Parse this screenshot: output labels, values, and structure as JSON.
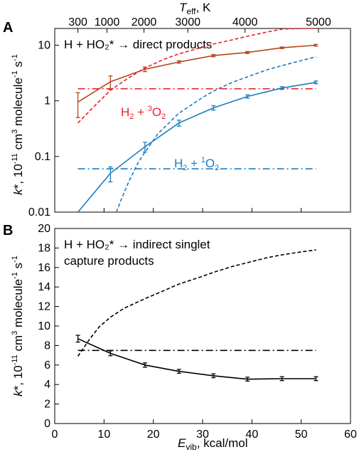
{
  "chart_data": [
    {
      "panel": "A",
      "type": "line",
      "yscale": "log",
      "ylim": [
        0.01,
        20
      ],
      "xlim": [
        0,
        60
      ],
      "yticks": [
        0.01,
        0.1,
        1,
        10
      ],
      "ytick_labels": [
        "0.01",
        "0.1",
        "1",
        "10"
      ],
      "annotation": "H + HO₂* → direct products",
      "top_axis": {
        "label": "T",
        "label_sub": "eff",
        "label_unit": ", K",
        "ticks": [
          300,
          1000,
          2000,
          3000,
          4000,
          5000
        ],
        "tick_labels": [
          "300",
          "1000",
          "2000",
          "3000",
          "4000",
          "5000"
        ],
        "tick_positions_evib": [
          4.7,
          10.6,
          18.1,
          27.0,
          38.6,
          53.5
        ]
      },
      "series": [
        {
          "name": "H₂ + ³O₂",
          "label_parts": [
            "H",
            "2",
            " + ",
            "3",
            "O",
            "2"
          ],
          "color": "#e8202a",
          "style": "dashdot",
          "x": [
            4.7,
            53
          ],
          "y": [
            1.65,
            1.65
          ]
        },
        {
          "name": "",
          "color": "#b5471d",
          "style": "solid-markers",
          "x": [
            4.7,
            11.3,
            18.3,
            25.2,
            32.2,
            39.1,
            46.1,
            53
          ],
          "y": [
            0.95,
            2.2,
            3.7,
            5.0,
            6.5,
            7.4,
            9.0,
            10.0
          ],
          "err": [
            0.45,
            0.6,
            0.35,
            0.25,
            0.3,
            0.3,
            0.3,
            0.35
          ]
        },
        {
          "name": "",
          "color": "#e8202a",
          "style": "dashed",
          "x": [
            4.7,
            8,
            11.3,
            15,
            18.3,
            22,
            25.2,
            30,
            32.2,
            36,
            39.1,
            43,
            46.1,
            50,
            53
          ],
          "y": [
            0.4,
            0.8,
            1.55,
            2.6,
            3.9,
            5.5,
            7.0,
            9.2,
            10.5,
            12.5,
            14.5,
            17.2,
            19.5,
            22.0,
            24.0
          ]
        },
        {
          "name": "H₂ + ¹O₂",
          "label_parts": [
            "H",
            "2",
            " + ",
            "1",
            "O",
            "2"
          ],
          "color": "#1a7ec0",
          "style": "dashdot",
          "x": [
            4.7,
            53
          ],
          "y": [
            0.06,
            0.06
          ]
        },
        {
          "name": "",
          "color": "#1a7ec0",
          "style": "solid-markers",
          "x": [
            4.7,
            11.3,
            18.3,
            25.2,
            32.2,
            39.1,
            46.1,
            53
          ],
          "y": [
            0.0065,
            0.05,
            0.15,
            0.4,
            0.75,
            1.2,
            1.7,
            2.15
          ],
          "err": [
            0.0,
            0.015,
            0.03,
            0.05,
            0.07,
            0.08,
            0.1,
            0.12
          ]
        },
        {
          "name": "",
          "color": "#1a7ec0",
          "style": "dashed",
          "x": [
            12.5,
            13.5,
            15,
            17,
            18.3,
            21,
            25.2,
            30,
            32.2,
            36,
            39.1,
            43,
            46.1,
            50,
            53
          ],
          "y": [
            0.01,
            0.017,
            0.035,
            0.08,
            0.12,
            0.26,
            0.6,
            1.15,
            1.5,
            2.15,
            2.7,
            3.6,
            4.3,
            5.3,
            6.2
          ]
        }
      ]
    },
    {
      "panel": "B",
      "type": "line",
      "ylim": [
        0,
        20
      ],
      "xlim": [
        0,
        60
      ],
      "yticks": [
        0,
        2,
        4,
        6,
        8,
        10,
        12,
        14,
        16,
        18,
        20
      ],
      "xticks": [
        0,
        10,
        20,
        30,
        40,
        50,
        60
      ],
      "annotation": [
        "H + HO₂* → indirect singlet",
        "capture products"
      ],
      "series": [
        {
          "name": "",
          "color": "#000000",
          "style": "solid-markers",
          "x": [
            4.7,
            11.3,
            18.3,
            25.2,
            32.2,
            39.1,
            46.1,
            53
          ],
          "y": [
            8.7,
            7.2,
            6.0,
            5.35,
            4.9,
            4.55,
            4.6,
            4.6
          ],
          "err": [
            0.35,
            0.25,
            0.22,
            0.2,
            0.2,
            0.2,
            0.2,
            0.2
          ]
        },
        {
          "name": "",
          "color": "#000000",
          "style": "dashed",
          "x": [
            4.7,
            7,
            9,
            11.3,
            14,
            18.3,
            22,
            25.2,
            30,
            32.2,
            36,
            39.1,
            43,
            46.1,
            50,
            53
          ],
          "y": [
            6.9,
            8.6,
            9.9,
            10.9,
            11.8,
            12.8,
            13.6,
            14.3,
            15.1,
            15.5,
            16.1,
            16.5,
            17.0,
            17.3,
            17.6,
            17.8
          ]
        },
        {
          "name": "",
          "color": "#000000",
          "style": "dashdot",
          "x": [
            4.7,
            53
          ],
          "y": [
            7.5,
            7.5
          ]
        }
      ]
    }
  ],
  "labels": {
    "panel_a": "A",
    "panel_b": "B",
    "ylabel_a": {
      "k": "k",
      "star": "*, 10",
      "exp": "-11",
      "mid": " cm",
      "exp2": "3",
      "mid2": " molecule",
      "exp3": "-1",
      "tail": " s",
      "exp4": "-1"
    },
    "ylabel_b": {
      "k": "k",
      "star": "*, 10",
      "exp": "-11",
      "mid": " cm",
      "exp2": "3",
      "mid2": " molecule",
      "exp3": "-1",
      "tail": " s",
      "exp4": "-1"
    },
    "xlabel": {
      "main": "E",
      "sub": "vib",
      "tail": ", kcal/mol"
    }
  }
}
